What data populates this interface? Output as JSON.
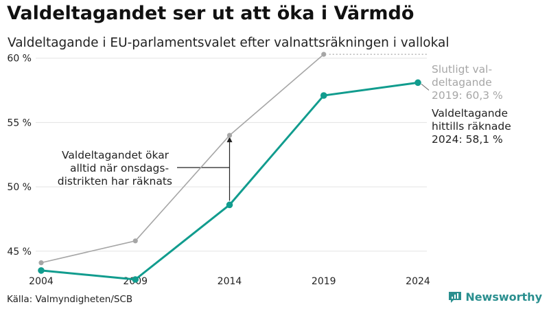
{
  "header": {
    "title": "Valdeltagandet ser ut att öka i Värmdö",
    "subtitle": "Valdeltagande i EU-parlamentsvalet efter valnattsräkningen i vallokal"
  },
  "chart_data": {
    "type": "line",
    "x": [
      2004,
      2009,
      2014,
      2019,
      2024
    ],
    "ylim": [
      42,
      61
    ],
    "y_ticks": [
      45,
      50,
      55,
      60
    ],
    "y_tick_labels": [
      "45 %",
      "50 %",
      "55 %",
      "60 %"
    ],
    "x_tick_labels": [
      "2004",
      "2009",
      "2014",
      "2019",
      "2024"
    ],
    "series": [
      {
        "name": "Slutligt valdeltagande",
        "color": "#a6a6a6",
        "values": [
          44.1,
          45.8,
          54.0,
          60.3,
          null
        ]
      },
      {
        "name": "Valdeltagande hittills räknade",
        "color": "#119c8e",
        "values": [
          43.5,
          42.8,
          48.6,
          57.1,
          58.1
        ]
      }
    ],
    "annotations": {
      "final": [
        "Slutligt val-",
        "deltagande",
        "2019: 60,3 %"
      ],
      "current": [
        "Valdeltagande",
        "hittills räknade",
        "2024: 58,1 %"
      ],
      "wednesday": [
        "Valdeltagandet ökar",
        "alltid när onsdags-",
        "distrikten har räknats"
      ]
    }
  },
  "footer": {
    "source": "Källa: Valmyndigheten/SCB",
    "brand": "Newsworthy",
    "brand_color": "#2a8f8f"
  }
}
